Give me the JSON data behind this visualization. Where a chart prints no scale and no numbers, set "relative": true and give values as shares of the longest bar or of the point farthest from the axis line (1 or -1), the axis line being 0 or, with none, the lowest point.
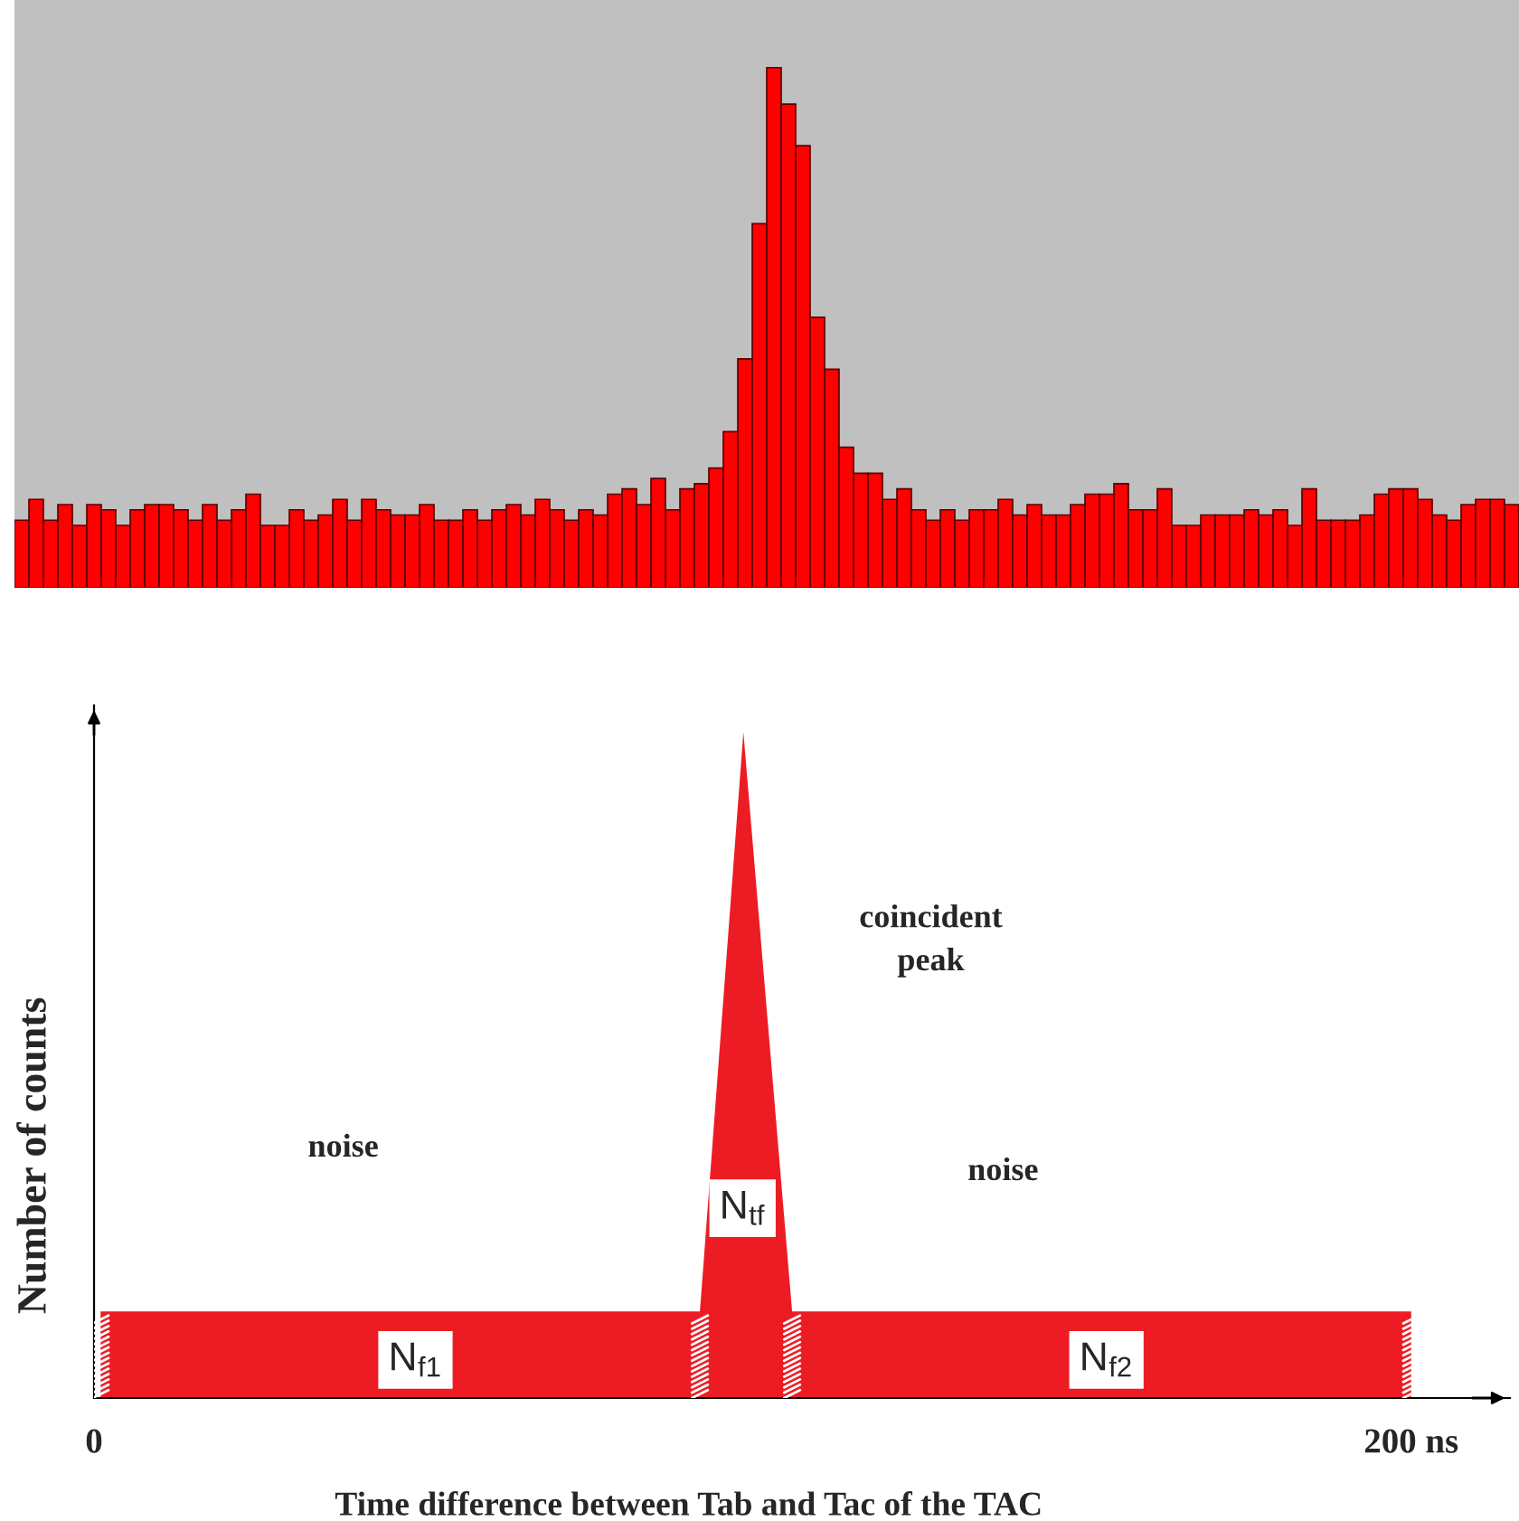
{
  "chart_data": [
    {
      "type": "bar",
      "relative": true,
      "tick_labels": false,
      "color": "#ff0000",
      "categories": [
        null,
        null,
        null,
        null,
        null,
        null,
        null,
        null,
        null,
        null,
        null,
        null,
        null,
        null,
        null,
        null,
        null,
        null,
        null,
        null,
        null,
        null,
        null,
        null,
        null,
        null,
        null,
        null,
        null,
        null,
        null,
        null,
        null,
        null,
        null,
        null,
        null,
        null,
        null,
        null,
        null,
        null,
        null,
        null,
        null,
        null,
        null,
        null,
        null,
        null,
        null,
        null,
        null,
        null,
        null,
        null,
        null,
        null,
        null,
        null,
        null,
        null,
        null,
        null,
        null,
        null,
        null,
        null,
        null,
        null,
        null,
        null,
        null,
        null,
        null,
        null,
        null,
        null,
        null,
        null,
        null,
        null,
        null,
        null,
        null,
        null,
        null,
        null,
        null,
        null,
        null,
        null,
        null,
        null,
        null,
        null,
        null,
        null,
        null,
        null,
        null,
        null,
        null,
        null
      ],
      "values": [
        0.13,
        0.17,
        0.13,
        0.16,
        0.12,
        0.16,
        0.15,
        0.12,
        0.15,
        0.16,
        0.16,
        0.15,
        0.13,
        0.16,
        0.13,
        0.15,
        0.18,
        0.12,
        0.12,
        0.15,
        0.13,
        0.14,
        0.17,
        0.13,
        0.17,
        0.15,
        0.14,
        0.14,
        0.16,
        0.13,
        0.13,
        0.15,
        0.13,
        0.15,
        0.16,
        0.14,
        0.17,
        0.15,
        0.13,
        0.15,
        0.14,
        0.18,
        0.19,
        0.16,
        0.21,
        0.15,
        0.19,
        0.2,
        0.23,
        0.3,
        0.44,
        0.7,
        1.0,
        0.93,
        0.85,
        0.52,
        0.42,
        0.27,
        0.22,
        0.22,
        0.17,
        0.19,
        0.15,
        0.13,
        0.15,
        0.13,
        0.15,
        0.15,
        0.17,
        0.14,
        0.16,
        0.14,
        0.14,
        0.16,
        0.18,
        0.18,
        0.2,
        0.15,
        0.15,
        0.19,
        0.12,
        0.12,
        0.14,
        0.14,
        0.14,
        0.15,
        0.14,
        0.15,
        0.12,
        0.19,
        0.13,
        0.13,
        0.13,
        0.14,
        0.18,
        0.19,
        0.19,
        0.17,
        0.14,
        0.13,
        0.16,
        0.17,
        0.17,
        0.16
      ]
    },
    {
      "type": "area",
      "relative": true,
      "tick_labels": "x",
      "color": "#ed1c24",
      "x": [
        1,
        92,
        98.6,
        106,
        200
      ],
      "values": [
        0.13,
        0.13,
        1,
        0.13,
        0.13
      ],
      "xlim": [
        0,
        215
      ],
      "xticks": [
        {
          "value": 0,
          "label": "0"
        },
        {
          "value": 200,
          "label": "200 ns"
        }
      ],
      "xlabel": "Time difference between Tab and Tac of the TAC",
      "ylabel": "Number of counts",
      "annotations": [
        "noise",
        "coincident\npeak",
        "noise",
        "N$_{f1}$",
        "N$_{tf}$",
        "N$_{f2}$"
      ]
    }
  ]
}
